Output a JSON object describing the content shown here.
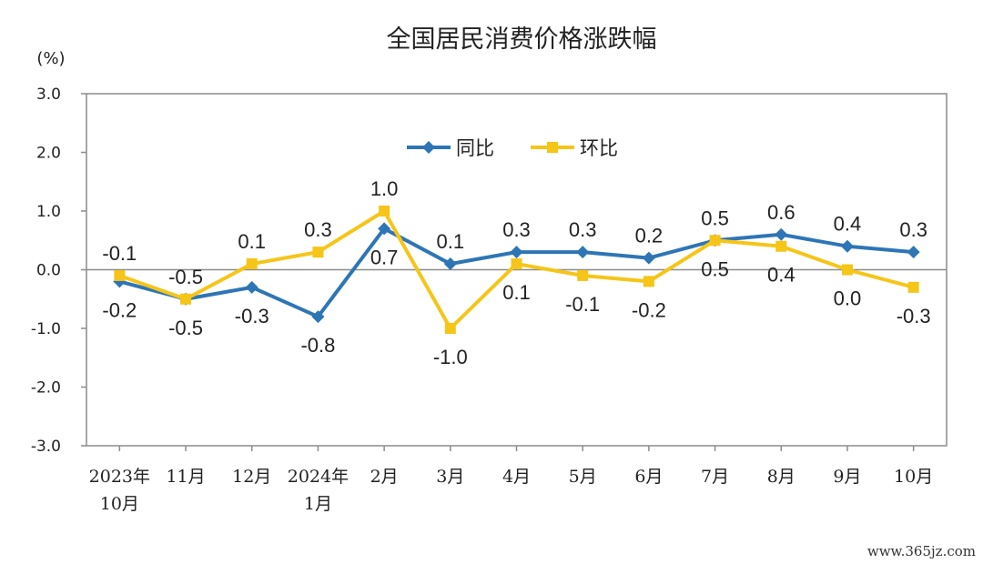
{
  "chart_data": {
    "type": "line",
    "title": "全国居民消费价格涨跌幅",
    "unit": "(%)",
    "ylim": [
      -3.0,
      3.0
    ],
    "yticks": [
      "3.0",
      "2.0",
      "1.0",
      "0.0",
      "-1.0",
      "-2.0",
      "-3.0"
    ],
    "ytick_values": [
      3,
      2,
      1,
      0,
      -1,
      -2,
      -3
    ],
    "categories": [
      [
        "2023年",
        "10月"
      ],
      [
        "11月"
      ],
      [
        "12月"
      ],
      [
        "2024年",
        "1月"
      ],
      [
        "2月"
      ],
      [
        "3月"
      ],
      [
        "4月"
      ],
      [
        "5月"
      ],
      [
        "6月"
      ],
      [
        "7月"
      ],
      [
        "8月"
      ],
      [
        "9月"
      ],
      [
        "10月"
      ]
    ],
    "series": [
      {
        "name": "同比",
        "color": "#2E75B6",
        "marker": "diamond",
        "values": [
          -0.2,
          -0.5,
          -0.3,
          -0.8,
          0.7,
          0.1,
          0.3,
          0.3,
          0.2,
          0.5,
          0.6,
          0.4,
          0.3
        ],
        "labels": [
          "-0.2",
          "-0.5",
          "-0.3",
          "-0.8",
          "0.7",
          "0.1",
          "0.3",
          "0.3",
          "0.2",
          "0.5",
          "0.6",
          "0.4",
          "0.3"
        ]
      },
      {
        "name": "环比",
        "color": "#F5C518",
        "marker": "square",
        "values": [
          -0.1,
          -0.5,
          0.1,
          0.3,
          1.0,
          -1.0,
          0.1,
          -0.1,
          -0.2,
          0.5,
          0.4,
          0.0,
          -0.3
        ],
        "labels": [
          "-0.1",
          "-0.5",
          "0.1",
          "0.3",
          "1.0",
          "-1.0",
          "0.1",
          "-0.1",
          "-0.2",
          "0.5",
          "0.4",
          "0.0",
          "-0.3"
        ]
      }
    ],
    "legend_position": "top-center",
    "grid": false
  },
  "watermark": "www.365jz.com"
}
